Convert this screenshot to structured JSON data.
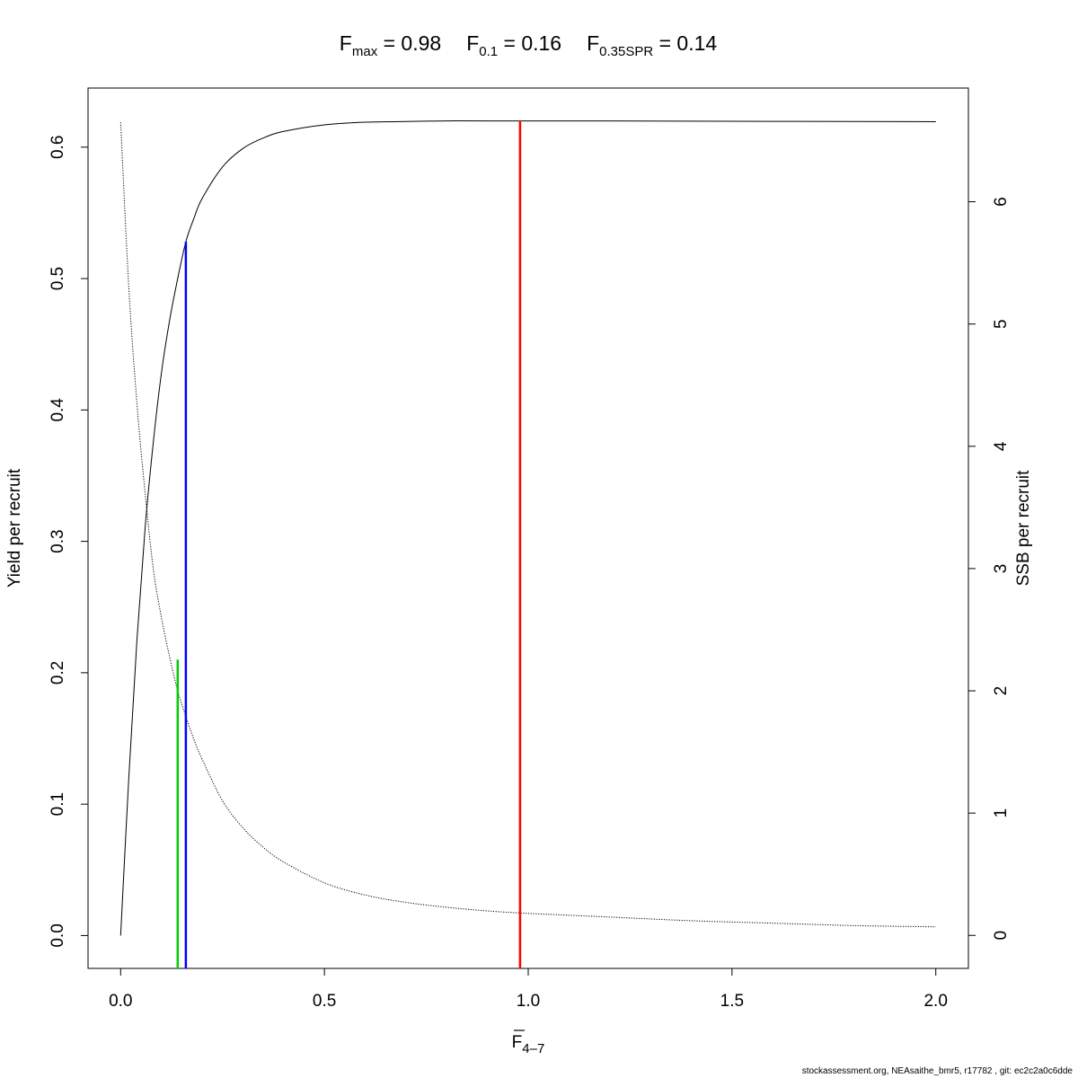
{
  "title": {
    "parts": [
      {
        "base": "F",
        "sub": "max",
        "value": " = 0.98"
      },
      {
        "base": "F",
        "sub": "0.1",
        "value": " = 0.16"
      },
      {
        "base": "F",
        "sub": "0.35SPR",
        "value": " = 0.14"
      }
    ]
  },
  "footer": "stockassessment.org, NEAsaithe_bmr5, r17782 , git: ec2c2a0c6dde",
  "chart_data": {
    "type": "line",
    "xlabel": {
      "base": "F",
      "overline": true,
      "sub": "4–7"
    },
    "ylabel": "Yield per recruit",
    "ylabel_right": "SSB per recruit",
    "xlim": [
      -0.08,
      2.08
    ],
    "ylim": [
      -0.025,
      0.645
    ],
    "y2lim": [
      -0.27,
      6.93
    ],
    "grid": false,
    "legend": "none",
    "x_ticks": [
      "0.0",
      "0.5",
      "1.0",
      "1.5",
      "2.0"
    ],
    "x_tick_values": [
      0,
      0.5,
      1,
      1.5,
      2
    ],
    "y_ticks": [
      "0.0",
      "0.1",
      "0.2",
      "0.3",
      "0.4",
      "0.5",
      "0.6"
    ],
    "y_tick_values": [
      0,
      0.1,
      0.2,
      0.3,
      0.4,
      0.5,
      0.6
    ],
    "y2_ticks": [
      "0",
      "1",
      "2",
      "3",
      "4",
      "5",
      "6"
    ],
    "y2_tick_values": [
      0,
      1,
      2,
      3,
      4,
      5,
      6
    ],
    "series": [
      {
        "axis": "left",
        "style": "solid",
        "color": "#000000",
        "x": [
          0,
          0.02,
          0.04,
          0.06,
          0.08,
          0.1,
          0.12,
          0.14,
          0.16,
          0.18,
          0.2,
          0.25,
          0.3,
          0.35,
          0.4,
          0.5,
          0.6,
          0.7,
          0.8,
          0.9,
          0.98,
          1.2,
          1.5,
          1.8,
          2.0
        ],
        "y": [
          0,
          0.12,
          0.225,
          0.31,
          0.375,
          0.428,
          0.468,
          0.5,
          0.528,
          0.546,
          0.561,
          0.585,
          0.599,
          0.607,
          0.612,
          0.617,
          0.619,
          0.6195,
          0.62,
          0.62,
          0.62,
          0.62,
          0.6197,
          0.6195,
          0.6194
        ]
      },
      {
        "axis": "right",
        "style": "dotted",
        "color": "#000000",
        "x": [
          0,
          0.02,
          0.04,
          0.06,
          0.08,
          0.1,
          0.12,
          0.14,
          0.16,
          0.18,
          0.2,
          0.25,
          0.3,
          0.35,
          0.4,
          0.5,
          0.6,
          0.7,
          0.8,
          0.9,
          1.0,
          1.2,
          1.4,
          1.6,
          1.8,
          2.0
        ],
        "y": [
          6.65,
          5.3,
          4.35,
          3.62,
          3.0,
          2.6,
          2.28,
          2.0,
          1.79,
          1.6,
          1.44,
          1.1,
          0.88,
          0.72,
          0.6,
          0.43,
          0.33,
          0.27,
          0.23,
          0.2,
          0.18,
          0.15,
          0.12,
          0.1,
          0.08,
          0.07
        ]
      }
    ],
    "reference_lines": [
      {
        "name": "Fmax",
        "x": 0.98,
        "y_top": 0.62,
        "color": "#ff0000"
      },
      {
        "name": "F0.1",
        "x": 0.16,
        "y_top": 0.528,
        "color": "#0000ff"
      },
      {
        "name": "F0.35SPR",
        "x": 0.14,
        "y_top": 0.21,
        "color": "#00cd00"
      }
    ]
  }
}
